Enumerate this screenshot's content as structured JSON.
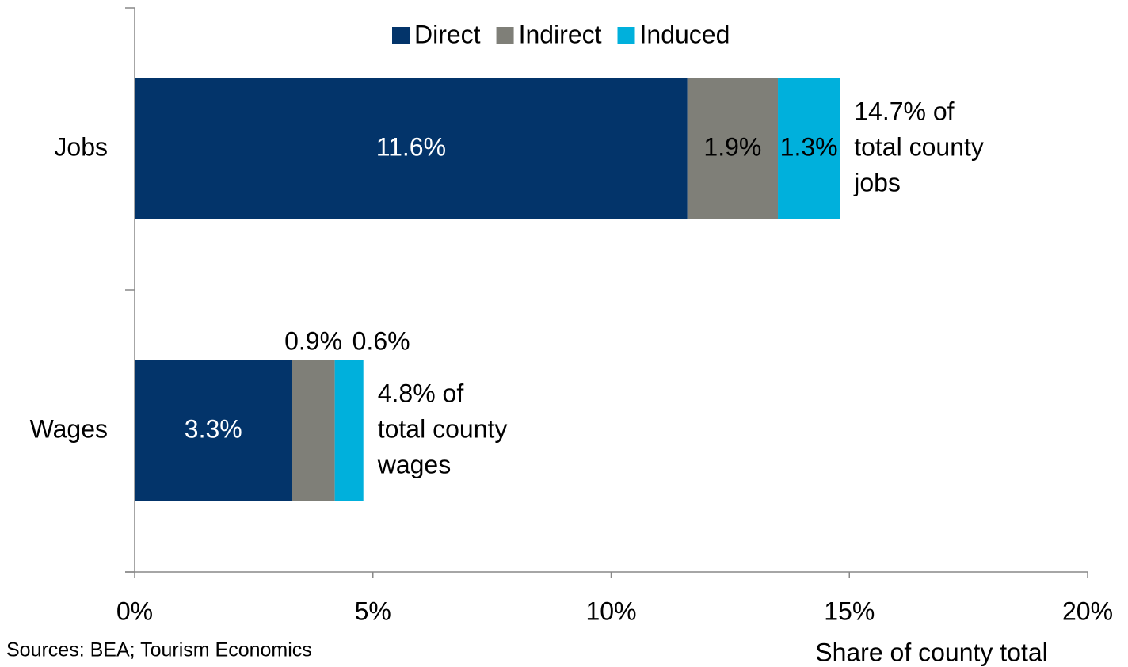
{
  "chart_data": {
    "type": "stacked_barh",
    "categories": [
      "Jobs",
      "Wages"
    ],
    "series": [
      {
        "name": "Direct",
        "color": "#03346a",
        "values": [
          11.6,
          3.3
        ],
        "value_labels": [
          "11.6%",
          "3.3%"
        ]
      },
      {
        "name": "Indirect",
        "color": "#7f7f78",
        "values": [
          1.9,
          0.9
        ],
        "value_labels": [
          "1.9%",
          "0.9%"
        ]
      },
      {
        "name": "Induced",
        "color": "#00b0dc",
        "values": [
          1.3,
          0.6
        ],
        "value_labels": [
          "1.3%",
          "0.6%"
        ]
      }
    ],
    "xlim": [
      0,
      20
    ],
    "xticks": [
      {
        "value": 0,
        "label": "0%"
      },
      {
        "value": 5,
        "label": "5%"
      },
      {
        "value": 10,
        "label": "10%"
      },
      {
        "value": 15,
        "label": "15%"
      },
      {
        "value": 20,
        "label": "20%"
      }
    ],
    "xlabel": "Share of county total",
    "annotations": [
      [
        "14.7% of",
        "total county",
        "jobs"
      ],
      [
        "4.8% of",
        "total county",
        "wages"
      ]
    ],
    "source": "Sources: BEA; Tourism Economics",
    "legend": "top",
    "grid": false
  }
}
